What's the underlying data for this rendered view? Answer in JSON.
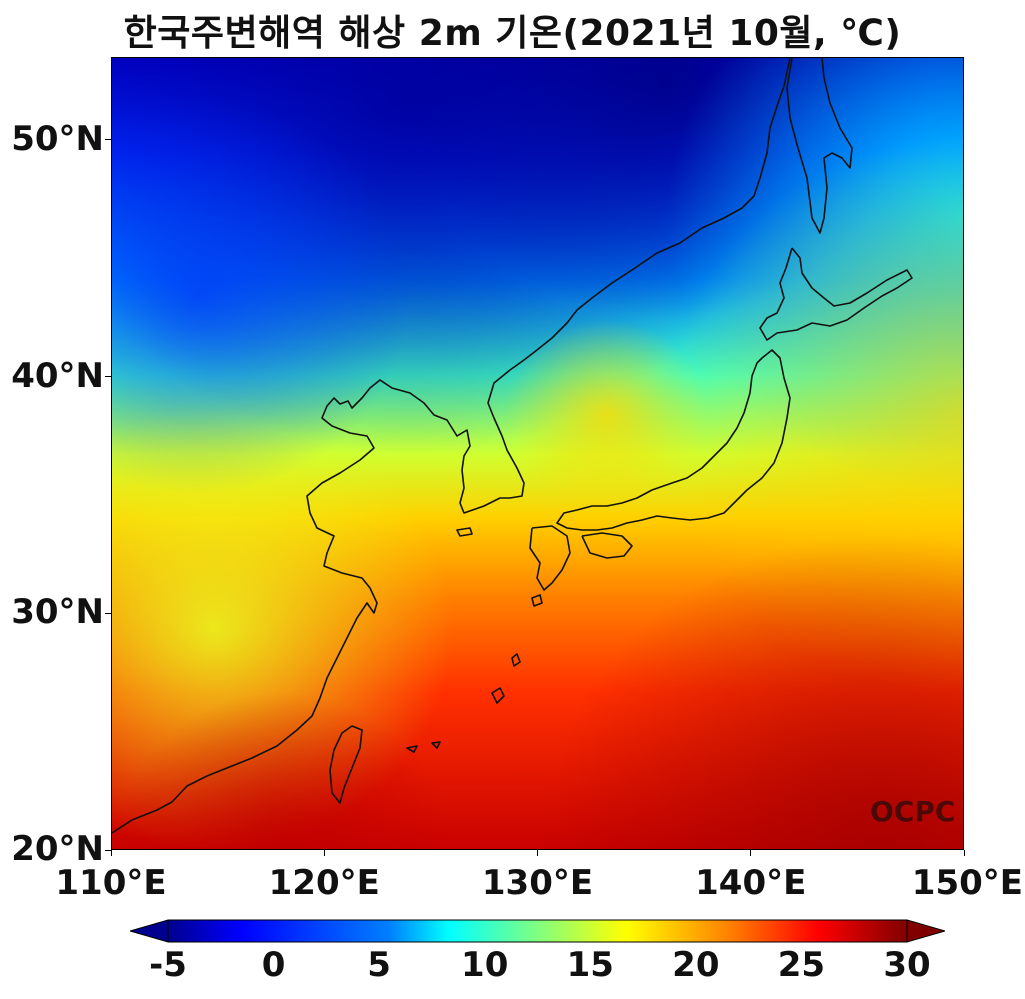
{
  "title": "한국주변해역 해상 2m 기온(2021년 10월, ℃)",
  "map": {
    "lon_range": [
      110,
      150
    ],
    "lat_range": [
      20,
      53.5
    ],
    "colormap": "jet",
    "value_range": [
      -5,
      30
    ],
    "y_ticks": [
      {
        "value": 50,
        "label": "50°N"
      },
      {
        "value": 40,
        "label": "40°N"
      },
      {
        "value": 30,
        "label": "30°N"
      },
      {
        "value": 20,
        "label": "20°N"
      }
    ],
    "x_ticks": [
      {
        "value": 110,
        "label": "110°E"
      },
      {
        "value": 120,
        "label": "120°E"
      },
      {
        "value": 130,
        "label": "130°E"
      },
      {
        "value": 140,
        "label": "140°E"
      },
      {
        "value": 150,
        "label": "150°E"
      }
    ]
  },
  "colorbar": {
    "ticks": [
      "-5",
      "0",
      "5",
      "10",
      "15",
      "20",
      "25",
      "30"
    ],
    "colors": [
      "#00008f",
      "#0000ff",
      "#0080ff",
      "#00ffff",
      "#80ff80",
      "#ffff00",
      "#ff8000",
      "#ff0000",
      "#800000"
    ]
  },
  "watermark": "OCPC"
}
